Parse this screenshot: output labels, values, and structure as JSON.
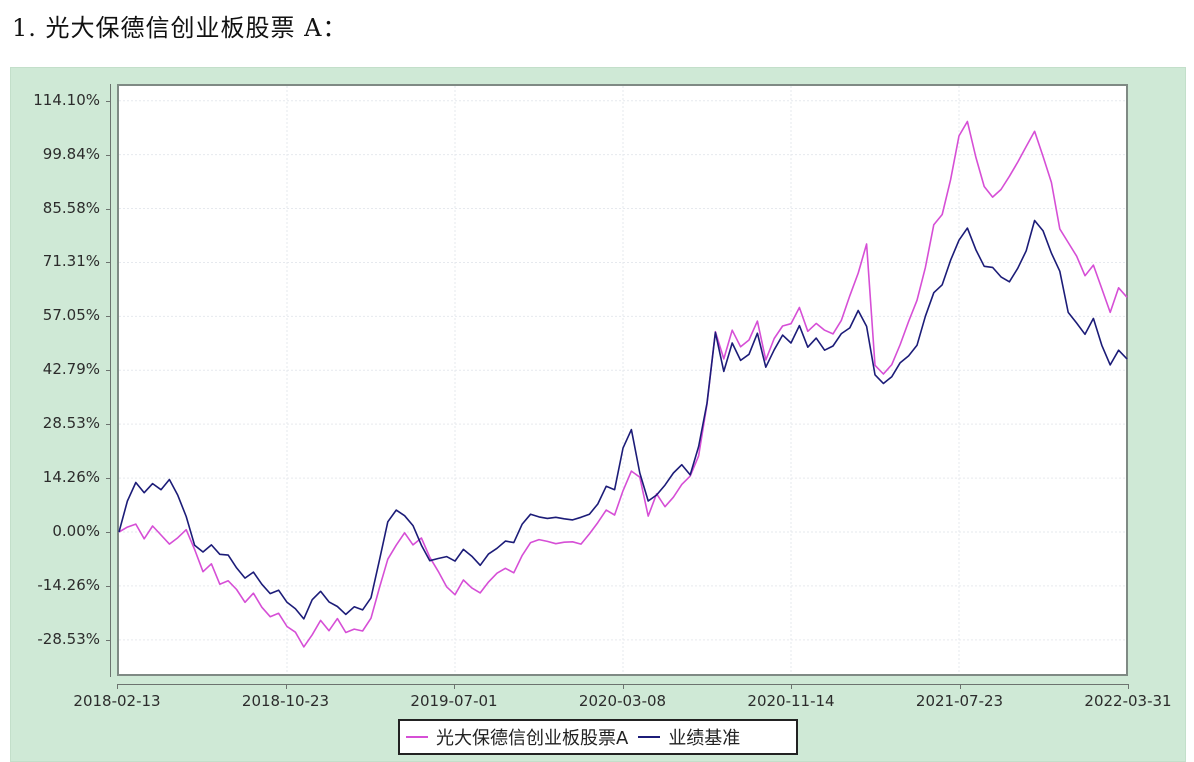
{
  "heading": "1.  光大保德信创业板股票 A：",
  "colors": {
    "panel_bg": "#cfe9d6",
    "fund_line": "#d64fd6",
    "benchmark_line": "#1c1c78",
    "grid": "#e6e9ee"
  },
  "chart_data": {
    "type": "line",
    "title": "",
    "xlabel": "",
    "ylabel": "",
    "ylim": [
      -35.0,
      122.0
    ],
    "grid": true,
    "legend_position": "bottom",
    "y_ticks": [
      "114.10%",
      "99.84%",
      "85.58%",
      "71.31%",
      "57.05%",
      "42.79%",
      "28.53%",
      "14.26%",
      "0.00%",
      "-14.26%",
      "-28.53%"
    ],
    "y_tick_values": [
      114.1,
      99.84,
      85.58,
      71.31,
      57.05,
      42.79,
      28.53,
      14.26,
      0.0,
      -14.26,
      -28.53
    ],
    "x_ticks": [
      "2018-02-13",
      "2018-10-23",
      "2019-07-01",
      "2020-03-08",
      "2020-11-14",
      "2021-07-23",
      "2022-03-31"
    ],
    "x_range": [
      "2018-02-13",
      "2022-03-31"
    ],
    "legend": [
      "光大保德信创业板股票A",
      "业绩基准"
    ],
    "series": [
      {
        "name": "光大保德信创业板股票A",
        "color": "#d64fd6",
        "values": [
          0.0,
          1.3,
          2.1,
          -1.8,
          1.6,
          -0.8,
          -3.2,
          -1.5,
          0.6,
          -4.6,
          -10.5,
          -8.4,
          -13.8,
          -12.9,
          -15.2,
          -18.6,
          -16.2,
          -19.9,
          -22.4,
          -21.5,
          -25.0,
          -26.5,
          -30.4,
          -27.2,
          -23.4,
          -26.1,
          -22.9,
          -26.6,
          -25.7,
          -26.2,
          -22.8,
          -14.8,
          -7.2,
          -3.5,
          -0.2,
          -3.4,
          -1.6,
          -6.7,
          -10.4,
          -14.5,
          -16.6,
          -12.7,
          -14.8,
          -16.1,
          -13.2,
          -10.9,
          -9.6,
          -10.8,
          -6.2,
          -2.8,
          -2.0,
          -2.5,
          -3.1,
          -2.7,
          -2.6,
          -3.2,
          -0.5,
          2.5,
          5.8,
          4.5,
          10.9,
          16.1,
          14.5,
          4.2,
          10.1,
          6.7,
          9.2,
          12.6,
          14.8,
          20.1,
          33.8,
          53.0,
          45.8,
          53.4,
          49.0,
          50.8,
          55.8,
          45.5,
          51.2,
          54.5,
          55.1,
          59.4,
          53.1,
          55.2,
          53.4,
          52.4,
          56.0,
          62.5,
          68.5,
          76.2,
          44.1,
          41.8,
          44.3,
          49.6,
          55.7,
          61.3,
          70.0,
          81.3,
          84.0,
          93.2,
          104.8,
          108.6,
          99.2,
          91.4,
          88.6,
          90.6,
          94.1,
          97.9,
          102.0,
          106.0,
          99.4,
          92.5,
          80.2,
          76.6,
          73.0,
          67.8,
          70.6,
          64.4,
          58.1,
          64.6,
          62.1
        ]
      },
      {
        "name": "业绩基准",
        "color": "#1c1c78",
        "values": [
          0.0,
          8.2,
          13.1,
          10.4,
          12.8,
          11.2,
          13.9,
          9.7,
          4.1,
          -3.5,
          -5.3,
          -3.4,
          -5.9,
          -6.1,
          -9.5,
          -12.2,
          -10.6,
          -13.8,
          -16.3,
          -15.4,
          -18.6,
          -20.3,
          -23.0,
          -17.9,
          -15.7,
          -18.5,
          -19.7,
          -21.8,
          -19.8,
          -20.6,
          -17.4,
          -7.5,
          2.7,
          5.8,
          4.3,
          1.7,
          -3.5,
          -7.6,
          -7.0,
          -6.5,
          -7.7,
          -4.6,
          -6.4,
          -8.8,
          -5.8,
          -4.3,
          -2.4,
          -2.8,
          2.1,
          4.7,
          4.0,
          3.6,
          3.9,
          3.5,
          3.2,
          3.9,
          4.7,
          7.4,
          12.1,
          11.2,
          22.2,
          27.1,
          15.6,
          8.2,
          9.8,
          12.4,
          15.6,
          17.8,
          15.1,
          22.6,
          34.1,
          52.8,
          42.5,
          50.0,
          45.4,
          47.0,
          52.6,
          43.6,
          48.2,
          52.1,
          50.0,
          54.6,
          48.9,
          51.3,
          48.1,
          49.2,
          52.5,
          54.0,
          58.6,
          54.4,
          41.6,
          39.3,
          41.1,
          44.8,
          46.6,
          49.4,
          57.1,
          63.3,
          65.4,
          71.9,
          77.2,
          80.4,
          74.7,
          70.3,
          70.0,
          67.5,
          66.2,
          69.8,
          74.4,
          82.4,
          79.7,
          73.8,
          69.0,
          58.1,
          55.3,
          52.3,
          56.5,
          49.4,
          44.2,
          48.1,
          45.8
        ]
      }
    ]
  }
}
